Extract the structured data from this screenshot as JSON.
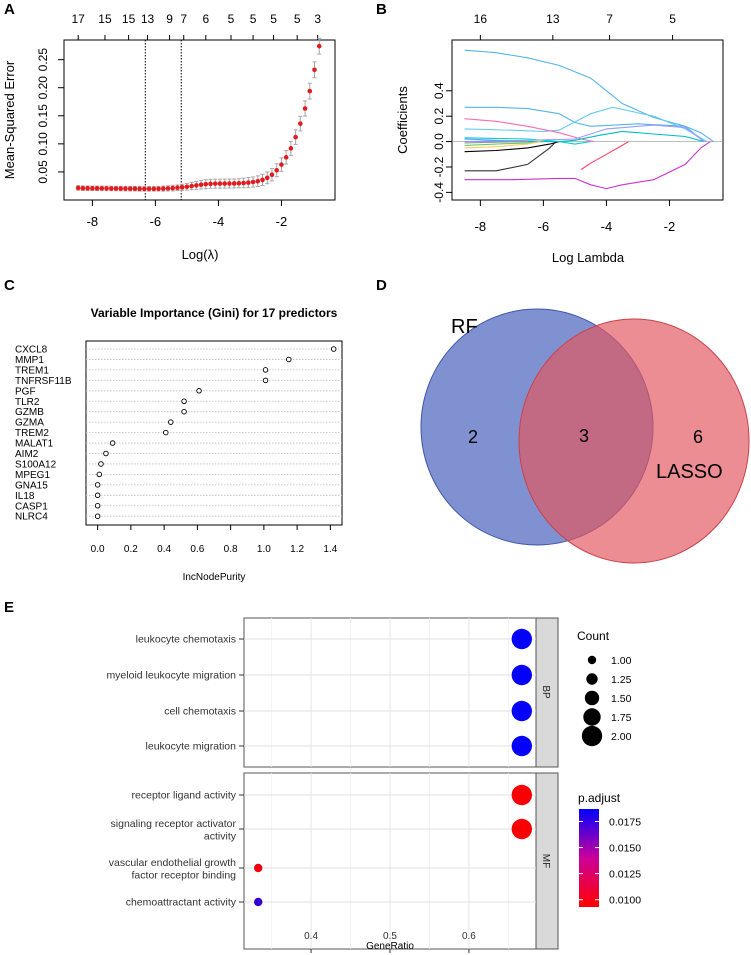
{
  "panels": {
    "A": "A",
    "B": "B",
    "C": "C",
    "D": "D",
    "E": "E"
  },
  "chart_data": [
    {
      "id": "A",
      "type": "scatter",
      "title": "",
      "xlabel": "Log(λ)",
      "ylabel": "Mean-Squared Error",
      "xlim": [
        -8.9,
        -0.3
      ],
      "ylim": [
        0.0,
        0.285
      ],
      "xticks": [
        -8,
        -6,
        -4,
        -2
      ],
      "xtick_labels": [
        "-8",
        "-6",
        "-4",
        "-2"
      ],
      "yticks": [
        0.05,
        0.1,
        0.15,
        0.2,
        0.25
      ],
      "ytick_labels": [
        "0.05",
        "0.10",
        "0.15",
        "0.20",
        "0.25"
      ],
      "top_axis_positions": [
        -8.45,
        -7.6,
        -6.85,
        -6.25,
        -5.55,
        -5.1,
        -4.4,
        -3.6,
        -2.9,
        -2.25,
        -1.5,
        -0.85
      ],
      "top_axis_labels": [
        "17",
        "15",
        "15",
        "13",
        "9",
        "7",
        "6",
        "5",
        "5",
        "5",
        "5",
        "3"
      ],
      "vlines": [
        -6.32,
        -5.18
      ],
      "x": [
        -8.45,
        -8.3,
        -8.15,
        -8.0,
        -7.85,
        -7.7,
        -7.55,
        -7.4,
        -7.25,
        -7.1,
        -6.95,
        -6.8,
        -6.65,
        -6.5,
        -6.35,
        -6.2,
        -6.05,
        -5.9,
        -5.75,
        -5.6,
        -5.45,
        -5.3,
        -5.15,
        -5.0,
        -4.85,
        -4.7,
        -4.55,
        -4.4,
        -4.25,
        -4.1,
        -3.95,
        -3.8,
        -3.65,
        -3.5,
        -3.35,
        -3.2,
        -3.05,
        -2.9,
        -2.75,
        -2.6,
        -2.45,
        -2.3,
        -2.15,
        -2.0,
        -1.85,
        -1.7,
        -1.55,
        -1.4,
        -1.25,
        -1.1,
        -0.95,
        -0.8
      ],
      "y": [
        0.0215,
        0.021,
        0.021,
        0.0208,
        0.0208,
        0.0207,
        0.0206,
        0.0205,
        0.0204,
        0.0203,
        0.0202,
        0.0201,
        0.0201,
        0.0199,
        0.0198,
        0.0198,
        0.0199,
        0.02,
        0.0203,
        0.0207,
        0.0212,
        0.0218,
        0.0226,
        0.0236,
        0.0248,
        0.026,
        0.0272,
        0.0282,
        0.0288,
        0.0291,
        0.0292,
        0.0292,
        0.0293,
        0.0295,
        0.0298,
        0.0303,
        0.031,
        0.032,
        0.0335,
        0.0358,
        0.0395,
        0.045,
        0.053,
        0.063,
        0.076,
        0.092,
        0.112,
        0.136,
        0.163,
        0.194,
        0.232,
        0.274
      ],
      "error": [
        0.004,
        0.004,
        0.004,
        0.004,
        0.004,
        0.004,
        0.004,
        0.004,
        0.004,
        0.004,
        0.004,
        0.004,
        0.004,
        0.004,
        0.004,
        0.004,
        0.004,
        0.004,
        0.0045,
        0.0045,
        0.005,
        0.005,
        0.0055,
        0.006,
        0.0065,
        0.007,
        0.0075,
        0.008,
        0.008,
        0.008,
        0.008,
        0.008,
        0.008,
        0.008,
        0.008,
        0.0085,
        0.009,
        0.009,
        0.0095,
        0.01,
        0.0105,
        0.011,
        0.0115,
        0.012,
        0.012,
        0.0125,
        0.013,
        0.013,
        0.0135,
        0.014,
        0.014,
        0.014
      ],
      "color": "#e41a1c"
    },
    {
      "id": "B",
      "type": "line",
      "title": "",
      "xlabel": "Log Lambda",
      "ylabel": "Coefficients",
      "xlim": [
        -8.9,
        -0.3
      ],
      "ylim": [
        -0.46,
        0.8
      ],
      "xticks": [
        -8,
        -6,
        -4,
        -2
      ],
      "xtick_labels": [
        "-8",
        "-6",
        "-4",
        "-2"
      ],
      "yticks": [
        -0.4,
        -0.2,
        0.0,
        0.2,
        0.4
      ],
      "ytick_labels": [
        "-0.4",
        "-0.2",
        "0.0",
        "0.2",
        "0.4"
      ],
      "top_axis_positions": [
        -8.0,
        -5.7,
        -3.9,
        -1.9
      ],
      "top_axis_labels": [
        "16",
        "13",
        "7",
        "5"
      ],
      "series": [
        {
          "name": "s1",
          "color": "#56B4E9",
          "x": [
            -8.5,
            -7.5,
            -6.5,
            -5.5,
            -4.5,
            -3.5,
            -2.5,
            -1.5,
            -1.0,
            -0.6
          ],
          "y": [
            0.72,
            0.7,
            0.66,
            0.6,
            0.5,
            0.3,
            0.19,
            0.12,
            0.07,
            0.0
          ]
        },
        {
          "name": "s2",
          "color": "#56B4E9",
          "x": [
            -8.5,
            -7.5,
            -6.5,
            -5.5,
            -5.0,
            -4.5,
            -3.0,
            -1.5,
            -0.9
          ],
          "y": [
            0.27,
            0.27,
            0.26,
            0.22,
            0.15,
            0.12,
            0.14,
            0.12,
            0.0
          ]
        },
        {
          "name": "s3",
          "color": "#66CCEE",
          "x": [
            -8.5,
            -7.0,
            -6.0,
            -5.5,
            -4.5,
            -3.8,
            -2.5,
            -1.5,
            -0.8
          ],
          "y": [
            0.1,
            0.09,
            0.08,
            0.09,
            0.22,
            0.27,
            0.2,
            0.1,
            0.0
          ]
        },
        {
          "name": "s4",
          "color": "#00CED1",
          "x": [
            -8.5,
            -6.5,
            -5.5,
            -5.0,
            -4.5
          ],
          "y": [
            0.03,
            0.02,
            0.0,
            -0.02,
            0.0
          ]
        },
        {
          "name": "s5",
          "color": "#FF69B4",
          "x": [
            -8.5,
            -7.5,
            -6.5,
            -5.5,
            -4.8,
            -4.4
          ],
          "y": [
            0.18,
            0.16,
            0.12,
            0.07,
            0.02,
            0.0
          ]
        },
        {
          "name": "s6",
          "color": "#CC33CC",
          "x": [
            -8.5,
            -7.0,
            -5.5,
            -5.0,
            -4.5,
            -4.0,
            -3.5,
            -2.5,
            -1.5,
            -1.0,
            -0.7
          ],
          "y": [
            -0.3,
            -0.3,
            -0.29,
            -0.29,
            -0.34,
            -0.37,
            -0.34,
            -0.3,
            -0.18,
            -0.05,
            0.0
          ]
        },
        {
          "name": "s7",
          "color": "#FF4466",
          "x": [
            -4.8,
            -4.5,
            -4.0,
            -3.5,
            -3.3
          ],
          "y": [
            -0.22,
            -0.17,
            -0.1,
            -0.03,
            0.0
          ]
        },
        {
          "name": "s8",
          "color": "#333333",
          "x": [
            -8.5,
            -7.5,
            -6.5,
            -5.8,
            -5.6
          ],
          "y": [
            -0.23,
            -0.23,
            -0.18,
            -0.05,
            0.0
          ]
        },
        {
          "name": "s9",
          "color": "#000000",
          "x": [
            -8.5,
            -7.5,
            -6.5,
            -5.8,
            -5.5
          ],
          "y": [
            -0.08,
            -0.07,
            -0.05,
            -0.02,
            0.0
          ]
        },
        {
          "name": "s10",
          "color": "#00BFC4",
          "x": [
            -8.5,
            -6.5,
            -5.5,
            -5.0,
            -4.2,
            -3.5,
            -2.5,
            -1.5,
            -0.9
          ],
          "y": [
            0.0,
            0.0,
            0.0,
            0.01,
            0.05,
            0.08,
            0.06,
            0.04,
            0.0
          ]
        },
        {
          "name": "s11",
          "color": "#9999FF",
          "x": [
            -8.5,
            -6.5,
            -5.0,
            -4.0,
            -2.5,
            -1.5,
            -0.9
          ],
          "y": [
            0.0,
            0.01,
            0.02,
            0.1,
            0.13,
            0.11,
            0.0
          ]
        },
        {
          "name": "s12",
          "color": "#66CC66",
          "x": [
            -8.5,
            -7.5,
            -6.5,
            -6.0
          ],
          "y": [
            -0.03,
            -0.02,
            -0.01,
            0.0
          ]
        },
        {
          "name": "s13",
          "color": "#FFCC66",
          "x": [
            -8.5,
            -7.5,
            -6.5,
            -6.1
          ],
          "y": [
            -0.05,
            -0.04,
            -0.02,
            0.0
          ]
        },
        {
          "name": "s14",
          "color": "#6699FF",
          "x": [
            -8.5,
            -7.5,
            -6.8
          ],
          "y": [
            0.02,
            0.01,
            0.0
          ]
        },
        {
          "name": "s15",
          "color": "#999999",
          "x": [
            -8.5,
            -7.5,
            -6.5
          ],
          "y": [
            -0.01,
            -0.005,
            0.0
          ]
        }
      ]
    },
    {
      "id": "C",
      "type": "scatter",
      "title": "Variable Importance (Gini) for 17 predictors",
      "xlabel": "IncNodePurity",
      "ylabel": "",
      "xlim": [
        -0.07,
        1.47
      ],
      "xticks": [
        0.0,
        0.2,
        0.4,
        0.6,
        0.8,
        1.0,
        1.2,
        1.4
      ],
      "xtick_labels": [
        "0.0",
        "0.2",
        "0.4",
        "0.6",
        "0.8",
        "1.0",
        "1.2",
        "1.4"
      ],
      "categories": [
        "CXCL8",
        "MMP1",
        "TREM1",
        "TNFRSF11B",
        "PGF",
        "TLR2",
        "GZMB",
        "GZMA",
        "TREM2",
        "MALAT1",
        "AIM2",
        "S100A12",
        "MPEG1",
        "GNA15",
        "IL18",
        "CASP1",
        "NLRC4"
      ],
      "values": [
        1.42,
        1.15,
        1.01,
        1.01,
        0.61,
        0.52,
        0.52,
        0.44,
        0.41,
        0.09,
        0.05,
        0.02,
        0.01,
        0.0,
        0.0,
        0.0,
        0.0
      ]
    },
    {
      "id": "E",
      "type": "scatter",
      "title": "",
      "xlabel": "GeneRatio",
      "ylabel": "",
      "xlim": [
        0.315,
        0.685
      ],
      "xticks": [
        0.4,
        0.5,
        0.6
      ],
      "xtick_labels": [
        "0.4",
        "0.5",
        "0.6"
      ],
      "facets": [
        {
          "strip": "BP",
          "terms": [
            {
              "label": [
                "leukocyte chemotaxis"
              ],
              "gene_ratio": 0.667,
              "count": 2,
              "p_adjust": 0.0185
            },
            {
              "label": [
                "myeloid leukocyte migration"
              ],
              "gene_ratio": 0.667,
              "count": 2,
              "p_adjust": 0.0185
            },
            {
              "label": [
                "cell chemotaxis"
              ],
              "gene_ratio": 0.667,
              "count": 2,
              "p_adjust": 0.0185
            },
            {
              "label": [
                "leukocyte migration"
              ],
              "gene_ratio": 0.667,
              "count": 2,
              "p_adjust": 0.0185
            }
          ]
        },
        {
          "strip": "MF",
          "terms": [
            {
              "label": [
                "receptor ligand activity"
              ],
              "gene_ratio": 0.667,
              "count": 2,
              "p_adjust": 0.0095
            },
            {
              "label": [
                "signaling receptor activator",
                "activity"
              ],
              "gene_ratio": 0.667,
              "count": 2,
              "p_adjust": 0.0095
            },
            {
              "label": [
                "vascular endothelial growth",
                "factor receptor binding"
              ],
              "gene_ratio": 0.333,
              "count": 1,
              "p_adjust": 0.0098
            },
            {
              "label": [
                "chemoattractant activity"
              ],
              "gene_ratio": 0.333,
              "count": 1,
              "p_adjust": 0.0168
            }
          ]
        }
      ],
      "legend_count": {
        "title": "Count",
        "labels": [
          "1.00",
          "1.25",
          "1.50",
          "1.75",
          "2.00"
        ],
        "values": [
          1.0,
          1.25,
          1.5,
          1.75,
          2.0
        ]
      },
      "legend_padjust": {
        "title": "p.adjust",
        "labels": [
          "0.0175",
          "0.0150",
          "0.0125",
          "0.0100"
        ],
        "values": [
          0.0175,
          0.015,
          0.0125,
          0.01
        ],
        "range": [
          0.0093,
          0.0187
        ],
        "low_color": "#FF0000",
        "high_color": "#0000FF"
      }
    }
  ],
  "venn": {
    "left_label": "RF",
    "right_label": "LASSO",
    "left_only": "2",
    "both": "3",
    "right_only": "6",
    "left_color": "#5C72C4",
    "right_color": "#E2575E"
  }
}
